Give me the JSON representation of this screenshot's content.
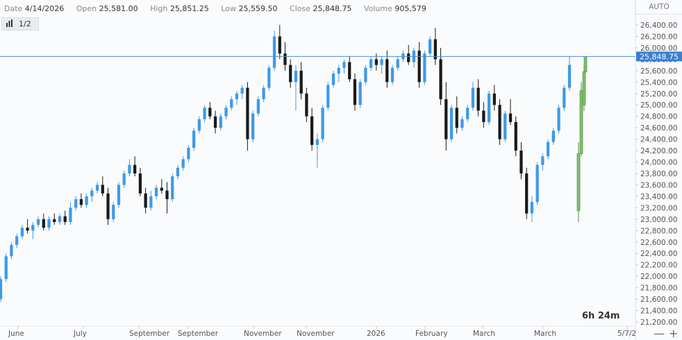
{
  "header": {
    "date_label": "Date",
    "date_value": "4/14/2026",
    "open_label": "Open",
    "open_value": "25,581.00",
    "high_label": "High",
    "high_value": "25,851.25",
    "low_label": "Low",
    "low_value": "25,559.50",
    "close_label": "Close",
    "close_value": "25,848.75",
    "volume_label": "Volume",
    "volume_value": "905,579"
  },
  "toolbar": {
    "page_indicator": "1/2"
  },
  "scale_button": "AUTO",
  "timer": "6h 24m",
  "zoom": {
    "minus": "—",
    "plus": "+"
  },
  "colors": {
    "up": "#3d9ae8",
    "down": "#1a1a1a",
    "last_up": "#7fbf6e",
    "price_line": "#4b8fd6",
    "price_tag": "#3a7fd0"
  },
  "chart_data": {
    "type": "candlestick",
    "ylim": [
      21200,
      26500
    ],
    "y_ticks": [
      "26,400.00",
      "26,200.00",
      "26,000.00",
      "25,800.00",
      "25,600.00",
      "25,400.00",
      "25,200.00",
      "25,000.00",
      "24,800.00",
      "24,600.00",
      "24,400.00",
      "24,200.00",
      "24,000.00",
      "23,800.00",
      "23,600.00",
      "23,400.00",
      "23,200.00",
      "23,000.00",
      "22,800.00",
      "22,600.00",
      "22,400.00",
      "22,200.00",
      "22,000.00",
      "21,800.00",
      "21,600.00",
      "21,400.00",
      "21,200.00"
    ],
    "x_labels": [
      "June",
      "July",
      "September",
      "September",
      "November",
      "November",
      "2026",
      "February",
      "March",
      "March",
      "5/7/2"
    ],
    "last_price": 25848.75,
    "last_price_label": "25,848.75",
    "series": [
      {
        "o": 21600,
        "h": 22000,
        "l": 21550,
        "c": 21950
      },
      {
        "o": 21950,
        "h": 22400,
        "l": 21900,
        "c": 22350
      },
      {
        "o": 22350,
        "h": 22600,
        "l": 22300,
        "c": 22550
      },
      {
        "o": 22550,
        "h": 22750,
        "l": 22500,
        "c": 22700
      },
      {
        "o": 22700,
        "h": 22900,
        "l": 22650,
        "c": 22850
      },
      {
        "o": 22850,
        "h": 23000,
        "l": 22750,
        "c": 22800
      },
      {
        "o": 22800,
        "h": 22950,
        "l": 22650,
        "c": 22900
      },
      {
        "o": 22900,
        "h": 23050,
        "l": 22850,
        "c": 23000
      },
      {
        "o": 23000,
        "h": 23100,
        "l": 22800,
        "c": 22850
      },
      {
        "o": 22850,
        "h": 23050,
        "l": 22800,
        "c": 23000
      },
      {
        "o": 23000,
        "h": 23100,
        "l": 22900,
        "c": 22950
      },
      {
        "o": 22950,
        "h": 23100,
        "l": 22900,
        "c": 23050
      },
      {
        "o": 23050,
        "h": 23150,
        "l": 22900,
        "c": 22950
      },
      {
        "o": 22950,
        "h": 23300,
        "l": 22900,
        "c": 23200
      },
      {
        "o": 23200,
        "h": 23400,
        "l": 23150,
        "c": 23350
      },
      {
        "o": 23350,
        "h": 23450,
        "l": 23200,
        "c": 23250
      },
      {
        "o": 23250,
        "h": 23450,
        "l": 23200,
        "c": 23400
      },
      {
        "o": 23400,
        "h": 23550,
        "l": 23300,
        "c": 23500
      },
      {
        "o": 23500,
        "h": 23650,
        "l": 23450,
        "c": 23600
      },
      {
        "o": 23600,
        "h": 23750,
        "l": 23400,
        "c": 23450
      },
      {
        "o": 23450,
        "h": 23550,
        "l": 22900,
        "c": 23000
      },
      {
        "o": 23000,
        "h": 23300,
        "l": 22950,
        "c": 23250
      },
      {
        "o": 23250,
        "h": 23650,
        "l": 23200,
        "c": 23600
      },
      {
        "o": 23600,
        "h": 23850,
        "l": 23550,
        "c": 23800
      },
      {
        "o": 23800,
        "h": 24050,
        "l": 23750,
        "c": 23950
      },
      {
        "o": 23950,
        "h": 24100,
        "l": 23750,
        "c": 23800
      },
      {
        "o": 23800,
        "h": 23900,
        "l": 23400,
        "c": 23450
      },
      {
        "o": 23450,
        "h": 23550,
        "l": 23100,
        "c": 23200
      },
      {
        "o": 23200,
        "h": 23500,
        "l": 23150,
        "c": 23400
      },
      {
        "o": 23400,
        "h": 23600,
        "l": 23350,
        "c": 23550
      },
      {
        "o": 23550,
        "h": 23700,
        "l": 23450,
        "c": 23500
      },
      {
        "o": 23500,
        "h": 23650,
        "l": 23100,
        "c": 23350
      },
      {
        "o": 23350,
        "h": 23800,
        "l": 23300,
        "c": 23750
      },
      {
        "o": 23750,
        "h": 23950,
        "l": 23700,
        "c": 23900
      },
      {
        "o": 23900,
        "h": 24100,
        "l": 23850,
        "c": 24050
      },
      {
        "o": 24050,
        "h": 24300,
        "l": 24000,
        "c": 24250
      },
      {
        "o": 24250,
        "h": 24600,
        "l": 24200,
        "c": 24550
      },
      {
        "o": 24550,
        "h": 24800,
        "l": 24500,
        "c": 24750
      },
      {
        "o": 24750,
        "h": 25000,
        "l": 24700,
        "c": 24950
      },
      {
        "o": 24950,
        "h": 25050,
        "l": 24750,
        "c": 24800
      },
      {
        "o": 24800,
        "h": 24900,
        "l": 24500,
        "c": 24600
      },
      {
        "o": 24600,
        "h": 24850,
        "l": 24550,
        "c": 24800
      },
      {
        "o": 24800,
        "h": 25000,
        "l": 24750,
        "c": 24950
      },
      {
        "o": 24950,
        "h": 25150,
        "l": 24900,
        "c": 25100
      },
      {
        "o": 25100,
        "h": 25250,
        "l": 25000,
        "c": 25200
      },
      {
        "o": 25200,
        "h": 25350,
        "l": 25100,
        "c": 25300
      },
      {
        "o": 25300,
        "h": 25400,
        "l": 24200,
        "c": 24400
      },
      {
        "o": 24400,
        "h": 24900,
        "l": 24350,
        "c": 24850
      },
      {
        "o": 24850,
        "h": 25150,
        "l": 24800,
        "c": 25100
      },
      {
        "o": 25100,
        "h": 25350,
        "l": 25050,
        "c": 25300
      },
      {
        "o": 25300,
        "h": 25700,
        "l": 25250,
        "c": 25650
      },
      {
        "o": 25650,
        "h": 26300,
        "l": 25600,
        "c": 26200
      },
      {
        "o": 26200,
        "h": 26400,
        "l": 25800,
        "c": 25900
      },
      {
        "o": 25900,
        "h": 26100,
        "l": 25600,
        "c": 25700
      },
      {
        "o": 25700,
        "h": 25800,
        "l": 25300,
        "c": 25400
      },
      {
        "o": 25400,
        "h": 25700,
        "l": 24900,
        "c": 25600
      },
      {
        "o": 25600,
        "h": 25750,
        "l": 25100,
        "c": 25200
      },
      {
        "o": 25200,
        "h": 25300,
        "l": 24700,
        "c": 24800
      },
      {
        "o": 24800,
        "h": 24950,
        "l": 24200,
        "c": 24300
      },
      {
        "o": 24300,
        "h": 24500,
        "l": 23900,
        "c": 24400
      },
      {
        "o": 24400,
        "h": 25000,
        "l": 24350,
        "c": 24950
      },
      {
        "o": 24950,
        "h": 25400,
        "l": 24900,
        "c": 25350
      },
      {
        "o": 25350,
        "h": 25600,
        "l": 25300,
        "c": 25550
      },
      {
        "o": 25550,
        "h": 25700,
        "l": 25400,
        "c": 25650
      },
      {
        "o": 25650,
        "h": 25800,
        "l": 25550,
        "c": 25750
      },
      {
        "o": 25750,
        "h": 25850,
        "l": 25400,
        "c": 25450
      },
      {
        "o": 25450,
        "h": 25550,
        "l": 24900,
        "c": 25000
      },
      {
        "o": 25000,
        "h": 25450,
        "l": 24950,
        "c": 25400
      },
      {
        "o": 25400,
        "h": 25700,
        "l": 25350,
        "c": 25650
      },
      {
        "o": 25650,
        "h": 25850,
        "l": 25600,
        "c": 25800
      },
      {
        "o": 25800,
        "h": 25900,
        "l": 25600,
        "c": 25700
      },
      {
        "o": 25700,
        "h": 25850,
        "l": 25550,
        "c": 25800
      },
      {
        "o": 25800,
        "h": 25950,
        "l": 25300,
        "c": 25400
      },
      {
        "o": 25400,
        "h": 25700,
        "l": 25350,
        "c": 25650
      },
      {
        "o": 25650,
        "h": 25850,
        "l": 25600,
        "c": 25800
      },
      {
        "o": 25800,
        "h": 25950,
        "l": 25750,
        "c": 25900
      },
      {
        "o": 25900,
        "h": 26050,
        "l": 25700,
        "c": 25750
      },
      {
        "o": 25750,
        "h": 26000,
        "l": 25650,
        "c": 25950
      },
      {
        "o": 25950,
        "h": 26100,
        "l": 25300,
        "c": 25400
      },
      {
        "o": 25400,
        "h": 25950,
        "l": 25350,
        "c": 25900
      },
      {
        "o": 25900,
        "h": 26200,
        "l": 25850,
        "c": 26150
      },
      {
        "o": 26150,
        "h": 26350,
        "l": 25700,
        "c": 25800
      },
      {
        "o": 25800,
        "h": 26000,
        "l": 25000,
        "c": 25100
      },
      {
        "o": 25100,
        "h": 25400,
        "l": 24200,
        "c": 24400
      },
      {
        "o": 24400,
        "h": 25000,
        "l": 24350,
        "c": 24950
      },
      {
        "o": 24950,
        "h": 25150,
        "l": 24500,
        "c": 24600
      },
      {
        "o": 24600,
        "h": 24800,
        "l": 24550,
        "c": 24750
      },
      {
        "o": 24750,
        "h": 25000,
        "l": 24700,
        "c": 24950
      },
      {
        "o": 24950,
        "h": 25400,
        "l": 24900,
        "c": 25300
      },
      {
        "o": 25300,
        "h": 25450,
        "l": 24800,
        "c": 24900
      },
      {
        "o": 24900,
        "h": 25050,
        "l": 24600,
        "c": 24700
      },
      {
        "o": 24700,
        "h": 25250,
        "l": 24650,
        "c": 25200
      },
      {
        "o": 25200,
        "h": 25350,
        "l": 24900,
        "c": 25000
      },
      {
        "o": 25000,
        "h": 25100,
        "l": 24300,
        "c": 24400
      },
      {
        "o": 24400,
        "h": 24900,
        "l": 24350,
        "c": 24850
      },
      {
        "o": 24850,
        "h": 25100,
        "l": 24650,
        "c": 24700
      },
      {
        "o": 24700,
        "h": 24800,
        "l": 24100,
        "c": 24200
      },
      {
        "o": 24200,
        "h": 24350,
        "l": 23700,
        "c": 23800
      },
      {
        "o": 23800,
        "h": 23900,
        "l": 23000,
        "c": 23100
      },
      {
        "o": 23100,
        "h": 23400,
        "l": 22950,
        "c": 23300
      },
      {
        "o": 23300,
        "h": 24000,
        "l": 23250,
        "c": 23950
      },
      {
        "o": 23950,
        "h": 24150,
        "l": 23850,
        "c": 24100
      },
      {
        "o": 24100,
        "h": 24400,
        "l": 24050,
        "c": 24350
      },
      {
        "o": 24350,
        "h": 24600,
        "l": 24300,
        "c": 24550
      },
      {
        "o": 24550,
        "h": 25000,
        "l": 24500,
        "c": 24950
      },
      {
        "o": 24950,
        "h": 25350,
        "l": 24900,
        "c": 25300
      },
      {
        "o": 25300,
        "h": 25850,
        "l": 25250,
        "c": 25700
      }
    ],
    "last_bars": [
      {
        "o": 23150,
        "h": 24350,
        "l": 22950,
        "c": 24150
      },
      {
        "o": 24150,
        "h": 25400,
        "l": 24100,
        "c": 25250
      },
      {
        "o": 25000,
        "h": 25700,
        "l": 24900,
        "c": 25580
      },
      {
        "o": 25581,
        "h": 25851.25,
        "l": 25559.5,
        "c": 25848.75
      }
    ]
  }
}
